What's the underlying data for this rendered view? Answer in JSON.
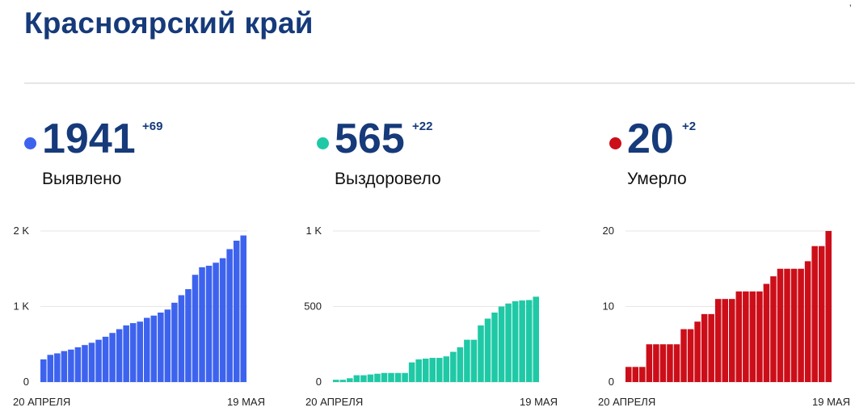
{
  "header": {
    "title": "Красноярский край"
  },
  "colors": {
    "confirmed": "#3d63ee",
    "recovered": "#1fc9a6",
    "deaths": "#cc0e19",
    "title": "#163a7a"
  },
  "chart_data": [
    {
      "type": "bar",
      "id": "confirmed",
      "total": "1941",
      "delta": "+69",
      "caption": "Выявлено",
      "x_start_label": "20 АПРЕЛЯ",
      "x_end_label": "19 МАЯ",
      "y_ticks": [
        {
          "value": 0,
          "label": "0"
        },
        {
          "value": 1000,
          "label": "1 K"
        },
        {
          "value": 2000,
          "label": "2 K"
        }
      ],
      "ylim": [
        0,
        2000
      ],
      "values": [
        300,
        360,
        380,
        410,
        430,
        460,
        490,
        520,
        560,
        600,
        650,
        700,
        750,
        780,
        800,
        850,
        880,
        920,
        960,
        1050,
        1150,
        1230,
        1420,
        1520,
        1540,
        1580,
        1640,
        1760,
        1872,
        1941
      ]
    },
    {
      "type": "bar",
      "id": "recovered",
      "total": "565",
      "delta": "+22",
      "caption": "Выздоровело",
      "x_start_label": "20 АПРЕЛЯ",
      "x_end_label": "19 МАЯ",
      "y_ticks": [
        {
          "value": 0,
          "label": "0"
        },
        {
          "value": 500,
          "label": "500"
        },
        {
          "value": 1000,
          "label": "1 K"
        }
      ],
      "ylim": [
        0,
        1000
      ],
      "values": [
        15,
        15,
        25,
        45,
        45,
        50,
        55,
        60,
        60,
        60,
        60,
        130,
        150,
        155,
        160,
        160,
        170,
        200,
        230,
        280,
        280,
        375,
        420,
        460,
        500,
        520,
        535,
        540,
        543,
        565
      ]
    },
    {
      "type": "bar",
      "id": "deaths",
      "total": "20",
      "delta": "+2",
      "caption": "Умерло",
      "x_start_label": "20 АПРЕЛЯ",
      "x_end_label": "19 МАЯ",
      "y_ticks": [
        {
          "value": 0,
          "label": "0"
        },
        {
          "value": 10,
          "label": "10"
        },
        {
          "value": 20,
          "label": "20"
        }
      ],
      "ylim": [
        0,
        20
      ],
      "values": [
        2,
        2,
        2,
        5,
        5,
        5,
        5,
        5,
        7,
        7,
        8,
        9,
        9,
        11,
        11,
        11,
        12,
        12,
        12,
        12,
        13,
        14,
        15,
        15,
        15,
        15,
        16,
        18,
        18,
        20
      ]
    }
  ]
}
